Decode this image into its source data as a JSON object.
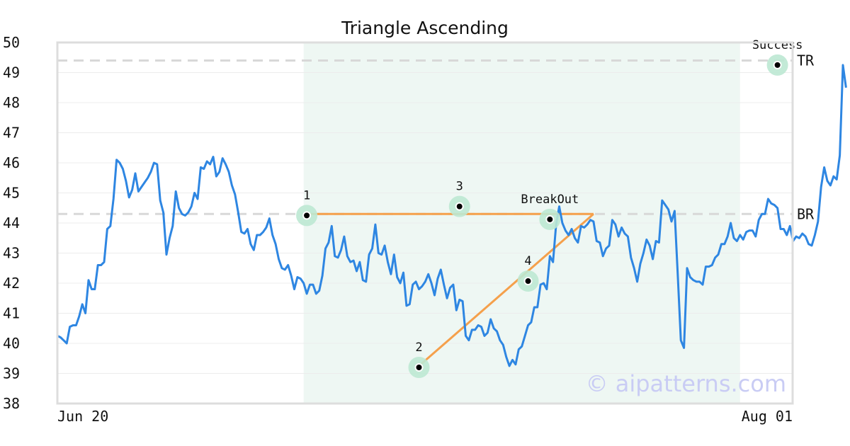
{
  "chart_data": {
    "type": "line",
    "title": "Triangle Ascending",
    "xlabel": "",
    "ylabel": "",
    "x_tick_labels": [
      "Jun 20",
      "Aug 01"
    ],
    "ylim": [
      38,
      50
    ],
    "y_ticks": [
      38,
      39,
      40,
      41,
      42,
      43,
      44,
      45,
      46,
      47,
      48,
      49,
      50
    ],
    "grid": true,
    "x_count": 233,
    "series": [
      {
        "values": [
          40.25,
          40.2,
          40.1,
          40.0,
          40.55,
          40.6,
          40.6,
          40.9,
          41.3,
          41.0,
          42.1,
          41.8,
          41.8,
          42.6,
          42.6,
          42.7,
          43.8,
          43.9,
          44.8,
          46.1,
          46.0,
          45.8,
          45.4,
          44.85,
          45.1,
          45.65,
          45.05,
          45.2,
          45.35,
          45.5,
          45.7,
          46.0,
          45.95,
          44.75,
          44.35,
          42.95,
          43.5,
          43.9,
          45.05,
          44.5,
          44.3,
          44.25,
          44.35,
          44.55,
          45.0,
          44.8,
          45.85,
          45.8,
          46.05,
          45.95,
          46.2,
          45.55,
          45.7,
          46.15,
          45.95,
          45.7,
          45.25,
          44.95,
          44.35,
          43.7,
          43.65,
          43.8,
          43.3,
          43.1,
          43.6,
          43.6,
          43.7,
          43.85,
          44.15,
          43.6,
          43.3,
          42.8,
          42.5,
          42.45,
          42.6,
          42.25,
          41.8,
          42.2,
          42.15,
          42.0,
          41.65,
          41.95,
          41.95,
          41.65,
          41.75,
          42.25,
          43.15,
          43.35,
          43.9,
          42.9,
          42.85,
          43.1,
          43.55,
          42.9,
          42.7,
          42.75,
          42.4,
          42.7,
          42.1,
          42.05,
          42.95,
          43.15,
          43.95,
          43.0,
          42.95,
          43.25,
          42.7,
          42.3,
          42.95,
          42.2,
          42.0,
          42.35,
          41.25,
          41.3,
          41.95,
          42.05,
          41.8,
          41.9,
          42.05,
          42.3,
          42.0,
          41.6,
          42.15,
          42.45,
          41.95,
          41.5,
          41.85,
          41.95,
          41.1,
          41.45,
          41.4,
          40.25,
          40.1,
          40.45,
          40.45,
          40.6,
          40.55,
          40.25,
          40.35,
          40.8,
          40.5,
          40.4,
          40.1,
          39.95,
          39.55,
          39.25,
          39.45,
          39.3,
          39.8,
          39.9,
          40.25,
          40.6,
          40.7,
          41.2,
          41.2,
          41.95,
          42.0,
          41.8,
          42.9,
          42.7,
          43.95,
          44.55,
          44.0,
          43.75,
          43.6,
          43.8,
          43.5,
          43.35,
          43.9,
          43.85,
          43.95,
          44.1,
          44.05,
          43.4,
          43.35,
          42.9,
          43.15,
          43.25,
          44.1,
          43.95,
          43.55,
          43.85,
          43.65,
          43.55,
          42.85,
          42.5,
          42.05,
          42.65,
          43.0,
          43.45,
          43.25,
          42.8,
          43.4,
          43.35,
          44.75,
          44.6,
          44.45,
          44.05,
          44.4,
          42.3,
          40.1,
          39.85,
          42.5,
          42.2,
          42.1,
          42.05,
          42.05,
          41.95,
          42.55,
          42.55,
          42.6,
          42.85,
          42.95,
          43.3,
          43.3,
          43.55,
          44.0,
          43.5,
          43.4,
          43.6,
          43.45,
          43.7,
          43.75,
          43.75,
          43.55,
          44.1,
          44.3,
          44.3,
          44.8,
          44.65,
          44.6,
          44.5,
          43.8,
          43.8,
          43.6,
          43.9,
          43.4,
          43.55,
          43.5,
          43.65,
          43.55,
          43.3,
          43.25,
          43.6,
          44.05,
          45.2,
          45.85,
          45.4,
          45.25,
          45.55,
          45.45,
          46.25,
          49.25,
          48.5
        ]
      }
    ],
    "pattern_region": {
      "x_start": 79,
      "x_end": 219
    },
    "reference_lines": [
      {
        "label": "TR",
        "y": 49.4
      },
      {
        "label": "BR",
        "y": 44.3
      }
    ],
    "triangle": {
      "resistance": [
        {
          "x": 80,
          "y": 44.3
        },
        {
          "x": 172,
          "y": 44.3
        }
      ],
      "support": [
        {
          "x": 116,
          "y": 39.25
        },
        {
          "x": 172,
          "y": 44.3
        }
      ]
    },
    "markers": [
      {
        "label": "1",
        "x": 80,
        "y": 44.25
      },
      {
        "label": "2",
        "x": 116,
        "y": 39.2
      },
      {
        "label": "3",
        "x": 129,
        "y": 44.55
      },
      {
        "label": "4",
        "x": 151,
        "y": 42.07
      },
      {
        "label": "BreakOut",
        "x": 158,
        "y": 44.12
      },
      {
        "label": "Success",
        "x": 231,
        "y": 49.25
      }
    ],
    "watermark": "© aipatterns.com",
    "colors": {
      "line": "#2e86e2",
      "triangle": "#f5a04b",
      "pattern_fill": "#eef7f3",
      "marker_halo": "#bde8d3",
      "reference": "#d8d8d8",
      "watermark": "#c9ccf4"
    }
  }
}
